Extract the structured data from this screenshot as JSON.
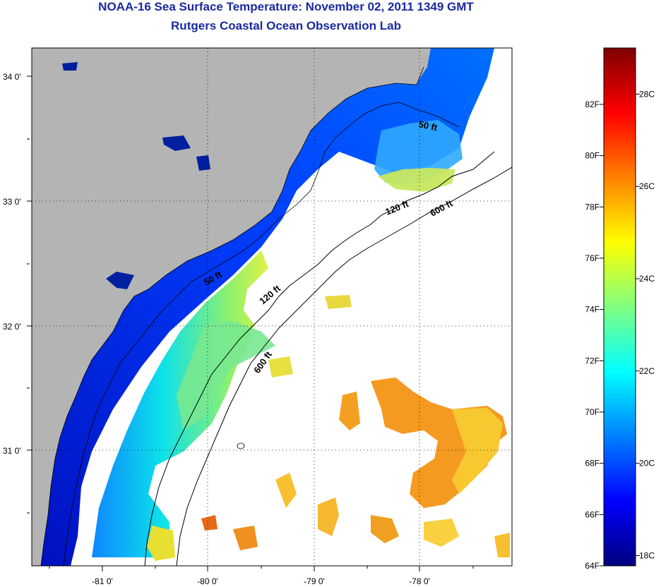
{
  "header": {
    "title": "NOAA-16 Sea Surface Temperature:  November 02, 2011 1349 GMT",
    "subtitle": "Rutgers Coastal Ocean Observation Lab"
  },
  "map": {
    "lat_labels": [
      "34 0'",
      "33 0'",
      "32 0'",
      "31 0'"
    ],
    "lon_labels": [
      "-81 0'",
      "-80 0'",
      "-79 0'",
      "-78 0'"
    ],
    "contour_labels": [
      "50 ft",
      "120 ft",
      "600 ft",
      "50 ft",
      "120 ft",
      "600 ft"
    ],
    "colors": {
      "land": "#b4b4b4",
      "cloud": "#ffffff",
      "frame": "#000000"
    }
  },
  "colorbar": {
    "fahrenheit_labels": [
      "82F",
      "80F",
      "78F",
      "76F",
      "74F",
      "72F",
      "70F",
      "68F",
      "66F",
      "64F"
    ],
    "celsius_labels": [
      "28C",
      "26C",
      "24C",
      "22C",
      "20C",
      "18C"
    ],
    "colors": [
      "#00007f",
      "#0000ff",
      "#0080ff",
      "#00ffff",
      "#80ff80",
      "#ffff00",
      "#ff8000",
      "#ff0000",
      "#7f0000"
    ]
  }
}
